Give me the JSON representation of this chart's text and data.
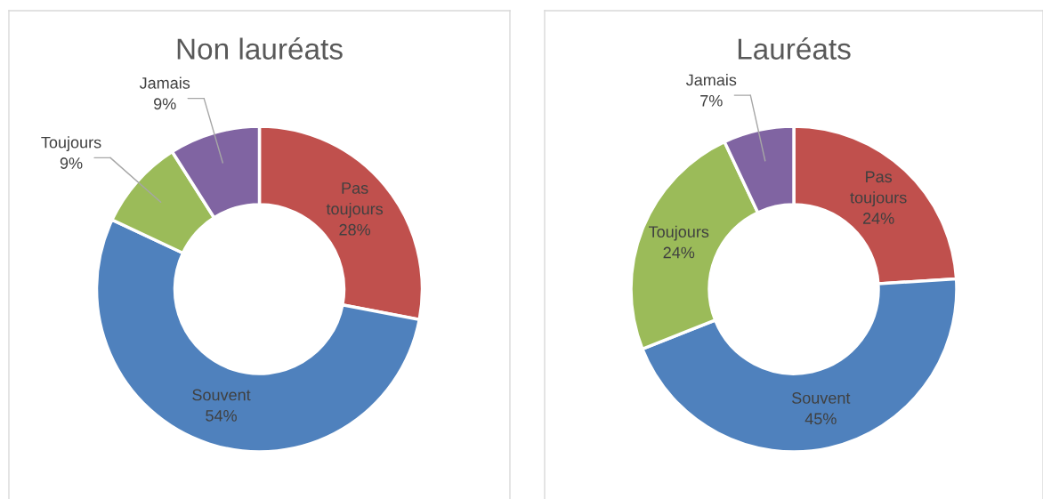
{
  "chart_data": [
    {
      "type": "donut",
      "title": "Non lauréats",
      "categories": [
        "Pas toujours",
        "Souvent",
        "Toujours",
        "Jamais"
      ],
      "values": [
        28,
        54,
        9,
        9
      ],
      "value_labels": [
        "28%",
        "54%",
        "9%",
        "9%"
      ],
      "colors": [
        "#c0504d",
        "#4f81bd",
        "#9bbb59",
        "#8064a2"
      ]
    },
    {
      "type": "donut",
      "title": "Lauréats",
      "categories": [
        "Pas toujours",
        "Souvent",
        "Toujours",
        "Jamais"
      ],
      "values": [
        24,
        45,
        24,
        7
      ],
      "value_labels": [
        "24%",
        "45%",
        "24%",
        "7%"
      ],
      "colors": [
        "#c0504d",
        "#4f81bd",
        "#9bbb59",
        "#8064a2"
      ]
    }
  ]
}
